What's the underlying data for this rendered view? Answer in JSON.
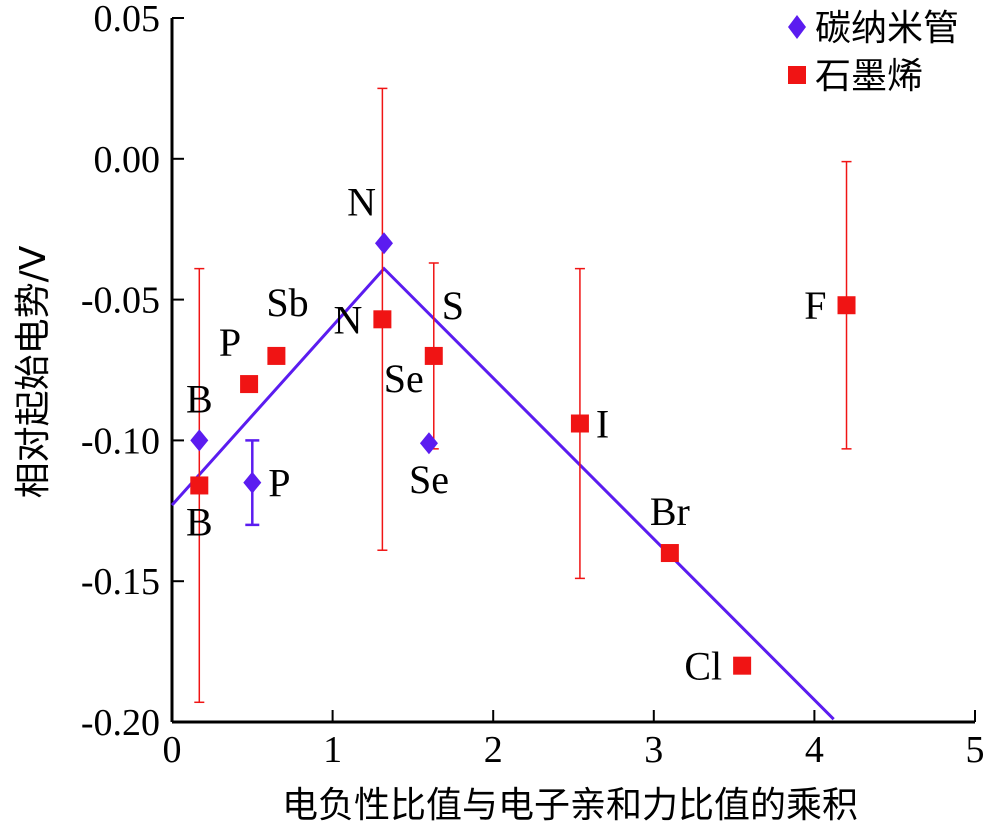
{
  "chart_data": {
    "type": "scatter",
    "xlabel": "电负性比值与电子亲和力比值的乘积",
    "ylabel": "相对起始电势/V",
    "xlim": [
      0,
      5
    ],
    "ylim": [
      -0.2,
      0.05
    ],
    "x_ticks": [
      0,
      1,
      2,
      3,
      4,
      5
    ],
    "x_tick_labels": [
      "0",
      "1",
      "2",
      "3",
      "4",
      "5"
    ],
    "y_ticks": [
      0.05,
      0.0,
      -0.05,
      -0.1,
      -0.15,
      -0.2
    ],
    "y_tick_labels": [
      "0.05",
      "0.00",
      "-0.05",
      "-0.10",
      "-0.15",
      "-0.20"
    ],
    "legend": {
      "position": "top-right",
      "entries": [
        {
          "label": "碳纳米管",
          "marker": "diamond",
          "color": "#5b1cf0"
        },
        {
          "label": "石墨烯",
          "marker": "square",
          "color": "#f01414"
        }
      ]
    },
    "series": [
      {
        "name": "碳纳米管",
        "marker": "diamond",
        "color": "#5b1cf0",
        "points": [
          {
            "label": "B",
            "x": 0.17,
            "y": -0.1,
            "err": null
          },
          {
            "label": "P",
            "x": 0.5,
            "y": -0.115,
            "err": 0.015
          },
          {
            "label": "N",
            "x": 1.32,
            "y": -0.03,
            "err": null
          },
          {
            "label": "Se",
            "x": 1.6,
            "y": -0.101,
            "err": null
          }
        ]
      },
      {
        "name": "石墨烯",
        "marker": "square",
        "color": "#f01414",
        "points": [
          {
            "label": "B",
            "x": 0.17,
            "y": -0.116,
            "err": 0.077
          },
          {
            "label": "P",
            "x": 0.48,
            "y": -0.08,
            "err": null
          },
          {
            "label": "Sb",
            "x": 0.65,
            "y": -0.07,
            "err": null
          },
          {
            "label": "N",
            "x": 1.31,
            "y": -0.057,
            "err": 0.082
          },
          {
            "label": "Se",
            "x": 1.63,
            "y": -0.07,
            "err": 0.033
          },
          {
            "label": "I",
            "x": 2.54,
            "y": -0.094,
            "err": 0.055
          },
          {
            "label": "Br",
            "x": 3.1,
            "y": -0.14,
            "err": null
          },
          {
            "label": "Cl",
            "x": 3.55,
            "y": -0.18,
            "err": null
          },
          {
            "label": "F",
            "x": 4.2,
            "y": -0.052,
            "err": 0.051
          }
        ]
      }
    ],
    "trend_line": {
      "color": "#5b1cf0",
      "points": [
        {
          "x": 0.0,
          "y": -0.123
        },
        {
          "x": 1.32,
          "y": -0.039
        },
        {
          "x": 4.12,
          "y": -0.199
        }
      ]
    },
    "label_placement": {
      "碳纳米管": [
        "above",
        "right",
        "above-left",
        "below"
      ],
      "石墨烯": [
        "below",
        "above-left",
        "above-right",
        "left",
        "below-left",
        "right",
        "above",
        "left",
        "left"
      ]
    },
    "extra_labels": [
      {
        "text": "S",
        "x": 1.68,
        "y": -0.052
      }
    ]
  }
}
